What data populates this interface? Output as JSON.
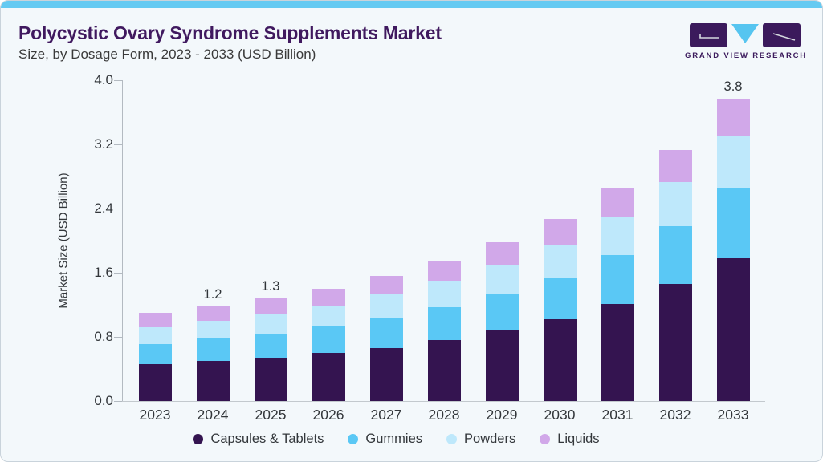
{
  "header": {
    "title": "Polycystic Ovary Syndrome Supplements Market",
    "subtitle": "Size, by Dosage Form, 2023 - 2033 (USD Billion)"
  },
  "logo": {
    "text": "GRAND VIEW RESEARCH"
  },
  "colors": {
    "accent_strip": "#65CAF2",
    "card_background": "#F3F8FB",
    "title_purple": "#40195F",
    "logo_purple": "#3B1A5C",
    "logo_triangle_blue": "#56C5F0",
    "capsules_tablets": "#341450",
    "gummies": "#5AC8F5",
    "powders": "#BEE8FB",
    "liquids": "#D1A8E9",
    "axis_line": "#B3BAC1",
    "text_dark": "#33373B"
  },
  "chart_data": {
    "type": "bar",
    "stacked": true,
    "title": "Polycystic Ovary Syndrome Supplements Market Size, by Dosage Form, 2023 - 2033 (USD Billion)",
    "xlabel": "",
    "ylabel": "Market Size (USD Billion)",
    "ylim": [
      0,
      4.0
    ],
    "yticks": [
      "0.0",
      "0.8",
      "1.6",
      "2.4",
      "3.2",
      "4.0"
    ],
    "grid": false,
    "legend_position": "bottom",
    "categories": [
      "2023",
      "2024",
      "2025",
      "2026",
      "2027",
      "2028",
      "2029",
      "2030",
      "2031",
      "2032",
      "2033"
    ],
    "series": [
      {
        "name": "Capsules & Tablets",
        "color": "#341450",
        "values": [
          0.46,
          0.5,
          0.54,
          0.6,
          0.66,
          0.76,
          0.88,
          1.02,
          1.21,
          1.46,
          1.78
        ]
      },
      {
        "name": "Gummies",
        "color": "#5AC8F5",
        "values": [
          0.25,
          0.28,
          0.3,
          0.33,
          0.37,
          0.41,
          0.45,
          0.52,
          0.61,
          0.72,
          0.87
        ]
      },
      {
        "name": "Powders",
        "color": "#BEE8FB",
        "values": [
          0.21,
          0.22,
          0.25,
          0.26,
          0.3,
          0.33,
          0.37,
          0.41,
          0.48,
          0.55,
          0.65
        ]
      },
      {
        "name": "Liquids",
        "color": "#D1A8E9",
        "values": [
          0.18,
          0.18,
          0.19,
          0.21,
          0.23,
          0.25,
          0.28,
          0.32,
          0.35,
          0.4,
          0.47
        ]
      }
    ],
    "totals": [
      1.1,
      1.18,
      1.28,
      1.4,
      1.56,
      1.75,
      1.98,
      2.27,
      2.65,
      3.13,
      3.77
    ],
    "total_labels": [
      "",
      "1.2",
      "1.3",
      "",
      "",
      "",
      "",
      "",
      "",
      "",
      "3.8"
    ]
  }
}
